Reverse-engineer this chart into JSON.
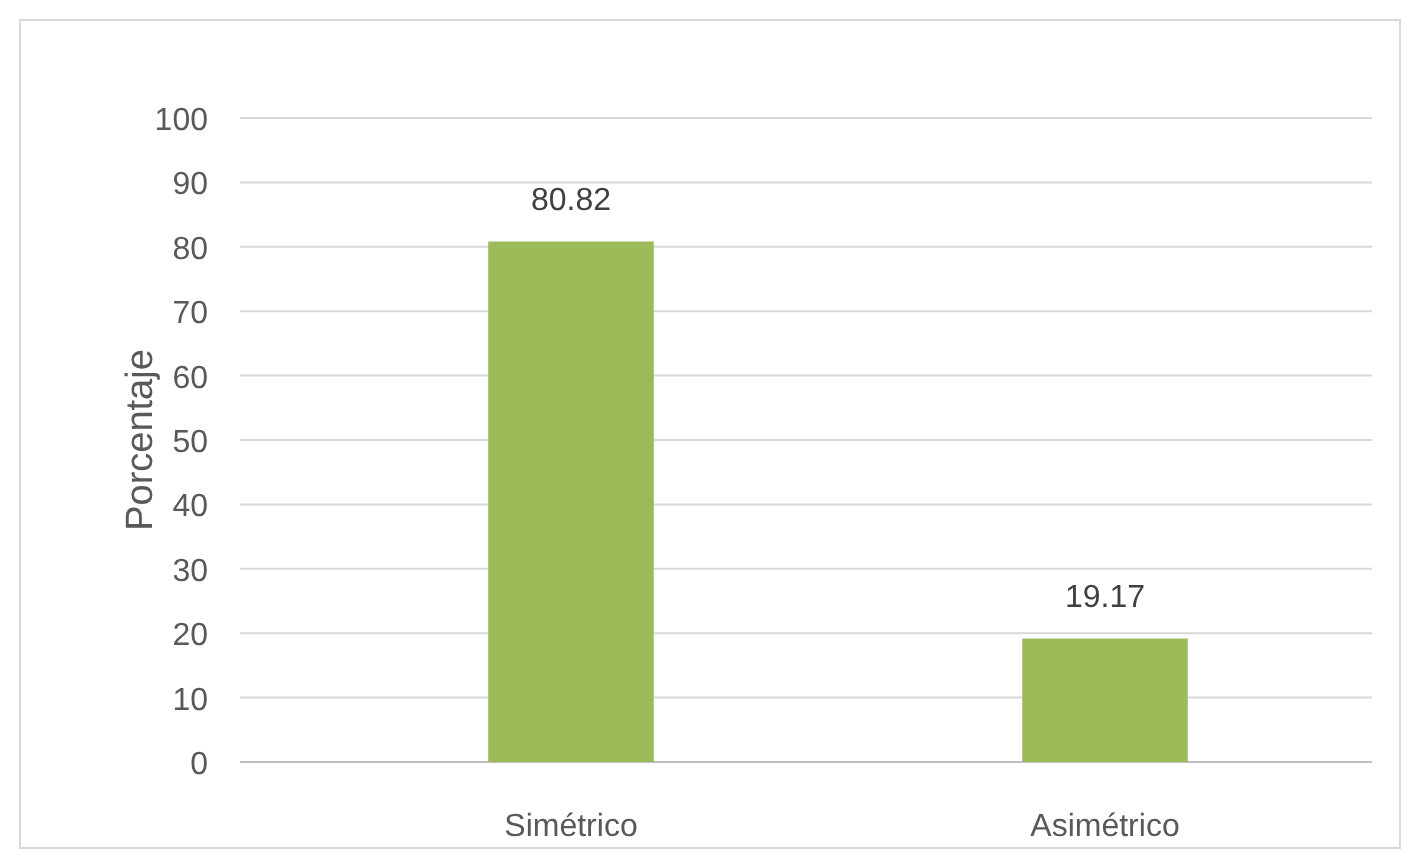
{
  "chart_data": {
    "type": "bar",
    "ylabel": "Porcentaje",
    "categories": [
      "Simétrico",
      "Asimétrico"
    ],
    "values": [
      80.82,
      19.17
    ],
    "color": "#9bbb59",
    "ylim": [
      0,
      100
    ],
    "yticks": [
      0,
      10,
      20,
      30,
      40,
      50,
      60,
      70,
      80,
      90,
      100
    ],
    "grid": "y",
    "data_labels": true
  }
}
